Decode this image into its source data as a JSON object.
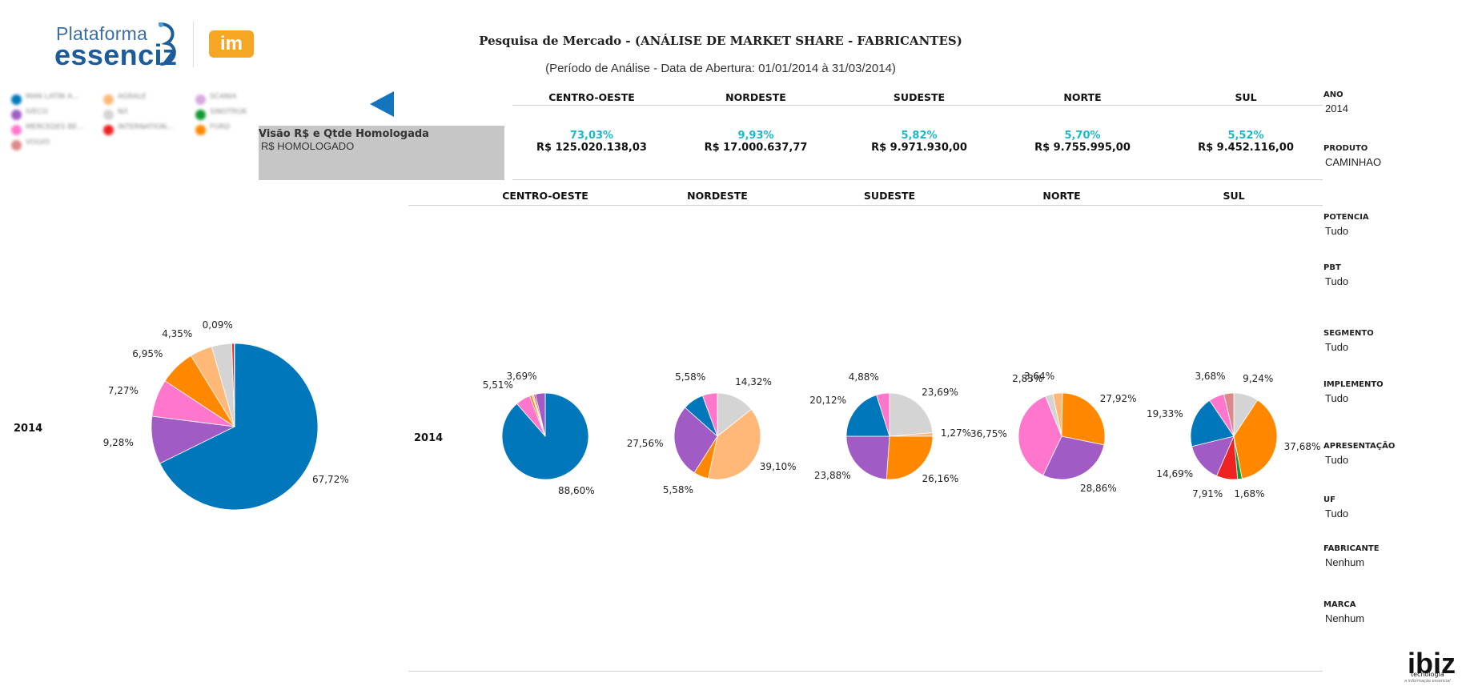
{
  "logo": {
    "line1": "Plataforma",
    "line2": "essenciz",
    "badge": "im"
  },
  "header": {
    "title": "Pesquisa de Mercado  - (ANÁLISE DE MARKET SHARE - FABRICANTES)",
    "subtitle": "(Período de Análise - Data de Abertura: 01/01/2014 à 31/03/2014)"
  },
  "colors": {
    "blue": "#0077bb",
    "purple": "#a05cc4",
    "pink": "#ff77cc",
    "orange": "#ff8800",
    "light_orange": "#ffb877",
    "gray": "#d4d4d4",
    "red": "#ee2222",
    "dark_red": "#bb3344",
    "green": "#119933",
    "accent_cyan": "#1bb8cc",
    "arrow": "#1375bd"
  },
  "legend": [
    {
      "color": "#0077bb",
      "label": "MAN LATIN A..."
    },
    {
      "color": "#ffb877",
      "label": "AGRALE"
    },
    {
      "color": "#d8a8e0",
      "label": "SCANIA"
    },
    {
      "color": "#a05cc4",
      "label": "IVECO"
    },
    {
      "color": "#d4d4d4",
      "label": "N/I"
    },
    {
      "color": "#119933",
      "label": "SINOTRUK"
    },
    {
      "color": "#ff77cc",
      "label": "MERCEDES BE..."
    },
    {
      "color": "#ee2222",
      "label": "INTERNATION..."
    },
    {
      "color": "#ff8800",
      "label": "FORD"
    },
    {
      "color": "#dd8888",
      "label": "VOLVO"
    }
  ],
  "parameter": {
    "title": "Visão R$ e Qtde Homologada",
    "value": "R$ HOMOLOGADO"
  },
  "summary": {
    "regions": [
      {
        "name": "CENTRO-OESTE",
        "pct": "73,03%",
        "amount": "R$ 125.020.138,03"
      },
      {
        "name": "NORDESTE",
        "pct": "9,93%",
        "amount": "R$ 17.000.637,77"
      },
      {
        "name": "SUDESTE",
        "pct": "5,82%",
        "amount": "R$ 9.971.930,00"
      },
      {
        "name": "NORTE",
        "pct": "5,70%",
        "amount": "R$ 9.755.995,00"
      },
      {
        "name": "SUL",
        "pct": "5,52%",
        "amount": "R$ 9.452.116,00"
      }
    ]
  },
  "region_headers": [
    "CENTRO-OESTE",
    "NORDESTE",
    "SUDESTE",
    "NORTE",
    "SUL"
  ],
  "year_label": "2014",
  "chart_data": [
    {
      "type": "pie",
      "title": "2014 - Total",
      "slices": [
        {
          "color": "#0077bb",
          "value": 67.72,
          "label": "67,72%"
        },
        {
          "color": "#a05cc4",
          "value": 9.28,
          "label": "9,28%"
        },
        {
          "color": "#ff77cc",
          "value": 7.27,
          "label": "7,27%"
        },
        {
          "color": "#ff8800",
          "value": 6.95,
          "label": "6,95%"
        },
        {
          "color": "#ffb877",
          "value": 4.35,
          "label": "4,35%"
        },
        {
          "color": "#d4d4d4",
          "value": 3.9,
          "label": ""
        },
        {
          "color": "#ee2222",
          "value": 0.44,
          "label": ""
        },
        {
          "color": "#dd8888",
          "value": 0.09,
          "label": "0,09%"
        }
      ]
    },
    {
      "type": "pie",
      "title": "CENTRO-OESTE",
      "slices": [
        {
          "color": "#0077bb",
          "value": 88.6,
          "label": "88,60%"
        },
        {
          "color": "#ff77cc",
          "value": 5.51,
          "label": "5,51%"
        },
        {
          "color": "#ff8800",
          "value": 0.9,
          "label": ""
        },
        {
          "color": "#d4d4d4",
          "value": 0.7,
          "label": ""
        },
        {
          "color": "#ee2222",
          "value": 0.6,
          "label": ""
        },
        {
          "color": "#a05cc4",
          "value": 3.69,
          "label": "3,69%"
        }
      ]
    },
    {
      "type": "pie",
      "title": "NORDESTE",
      "slices": [
        {
          "color": "#d4d4d4",
          "value": 14.32,
          "label": "14,32%"
        },
        {
          "color": "#ffb877",
          "value": 39.1,
          "label": "39,10%"
        },
        {
          "color": "#ff8800",
          "value": 5.58,
          "label": "5,58%"
        },
        {
          "color": "#a05cc4",
          "value": 27.56,
          "label": "27,56%"
        },
        {
          "color": "#0077bb",
          "value": 7.86,
          "label": ""
        },
        {
          "color": "#ff77cc",
          "value": 5.58,
          "label": "5,58%"
        }
      ]
    },
    {
      "type": "pie",
      "title": "SUDESTE",
      "slices": [
        {
          "color": "#d4d4d4",
          "value": 23.69,
          "label": "23,69%"
        },
        {
          "color": "#ffb877",
          "value": 1.27,
          "label": "1,27%"
        },
        {
          "color": "#ff8800",
          "value": 26.16,
          "label": "26,16%"
        },
        {
          "color": "#a05cc4",
          "value": 23.88,
          "label": "23,88%"
        },
        {
          "color": "#0077bb",
          "value": 20.12,
          "label": "20,12%"
        },
        {
          "color": "#ff77cc",
          "value": 4.88,
          "label": "4,88%"
        }
      ]
    },
    {
      "type": "pie",
      "title": "NORTE",
      "slices": [
        {
          "color": "#ffb877",
          "value": 3.64,
          "label": "3,64%"
        },
        {
          "color": "#ff8800",
          "value": 27.92,
          "label": "27,92%"
        },
        {
          "color": "#a05cc4",
          "value": 28.86,
          "label": "28,86%"
        },
        {
          "color": "#ff77cc",
          "value": 36.75,
          "label": "36,75%"
        },
        {
          "color": "#d4d4d4",
          "value": 2.83,
          "label": "2,83%"
        }
      ]
    },
    {
      "type": "pie",
      "title": "SUL",
      "slices": [
        {
          "color": "#d4d4d4",
          "value": 9.24,
          "label": "9,24%"
        },
        {
          "color": "#ff8800",
          "value": 37.68,
          "label": "37,68%"
        },
        {
          "color": "#119933",
          "value": 1.68,
          "label": "1,68%"
        },
        {
          "color": "#ee2222",
          "value": 7.91,
          "label": "7,91%"
        },
        {
          "color": "#a05cc4",
          "value": 14.69,
          "label": "14,69%"
        },
        {
          "color": "#0077bb",
          "value": 19.33,
          "label": "19,33%"
        },
        {
          "color": "#ff77cc",
          "value": 5.79,
          "label": ""
        },
        {
          "color": "#dd8888",
          "value": 3.68,
          "label": "3,68%"
        }
      ]
    }
  ],
  "filters": [
    {
      "label": "ANO",
      "value": "2014"
    },
    {
      "label": "PRODUTO",
      "value": "CAMINHAO"
    },
    {
      "label": "POTENCIA",
      "value": "Tudo"
    },
    {
      "label": "PBT",
      "value": "Tudo"
    },
    {
      "label": "SEGMENTO",
      "value": "Tudo"
    },
    {
      "label": "IMPLEMENTO",
      "value": "Tudo"
    },
    {
      "label": "APRESENTAÇÃO",
      "value": "Tudo"
    },
    {
      "label": "UF",
      "value": "Tudo"
    },
    {
      "label": "FABRICANTE",
      "value": "Nenhum"
    },
    {
      "label": "MARCA",
      "value": "Nenhum"
    }
  ],
  "footer_logo": {
    "name": "ibiz",
    "sub": "tecnologia",
    "tagline": "a informação essencial"
  }
}
